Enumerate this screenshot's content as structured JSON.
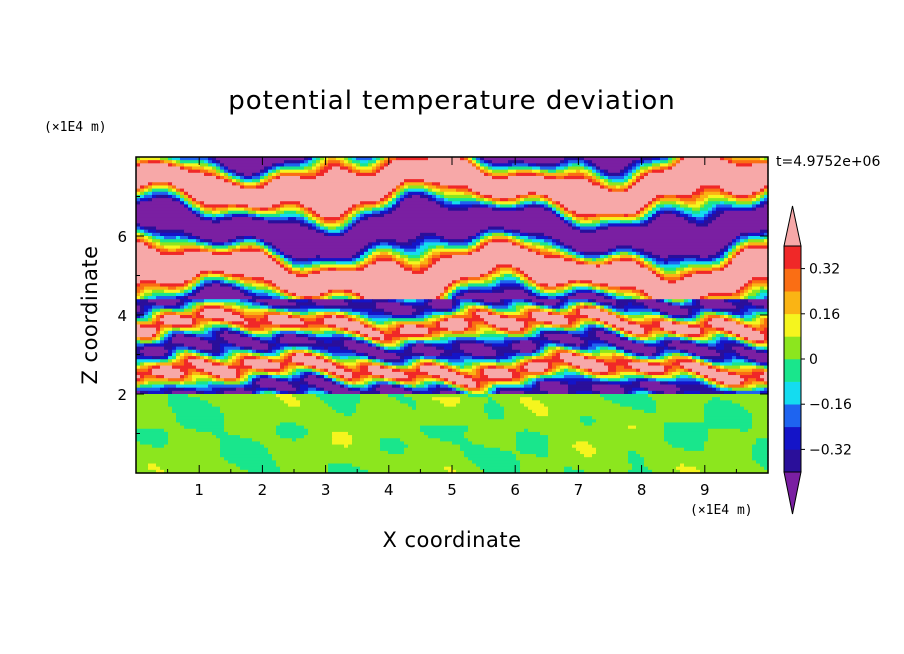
{
  "chart_data": {
    "type": "heatmap",
    "title": "potential temperature deviation",
    "xlabel": "X coordinate",
    "ylabel": "Z coordinate",
    "x_unit": "(×1E4 m)",
    "y_unit": "(×1E4 m)",
    "timestamp": "t=4.9752e+06",
    "xlim": [
      0,
      10
    ],
    "ylim": [
      0,
      8
    ],
    "x_ticks": [
      1,
      2,
      3,
      4,
      5,
      6,
      7,
      8,
      9
    ],
    "y_ticks": [
      2,
      4,
      6
    ],
    "colorbar": {
      "levels": [
        -0.4,
        -0.32,
        -0.24,
        -0.16,
        -0.08,
        0,
        0.08,
        0.16,
        0.24,
        0.32,
        0.4
      ],
      "tick_labels": [
        "0.32",
        "0.16",
        "0",
        "−0.16",
        "−0.32"
      ],
      "tick_values": [
        0.32,
        0.16,
        0,
        -0.16,
        -0.32
      ],
      "colors": [
        "#7a1fa2",
        "#2a0f9a",
        "#1414c8",
        "#1e64f0",
        "#14dcf0",
        "#19e68c",
        "#8ce61e",
        "#f5f51e",
        "#fab414",
        "#fa6e14",
        "#f02828",
        "#f7a8a8"
      ],
      "extend": "both"
    }
  }
}
